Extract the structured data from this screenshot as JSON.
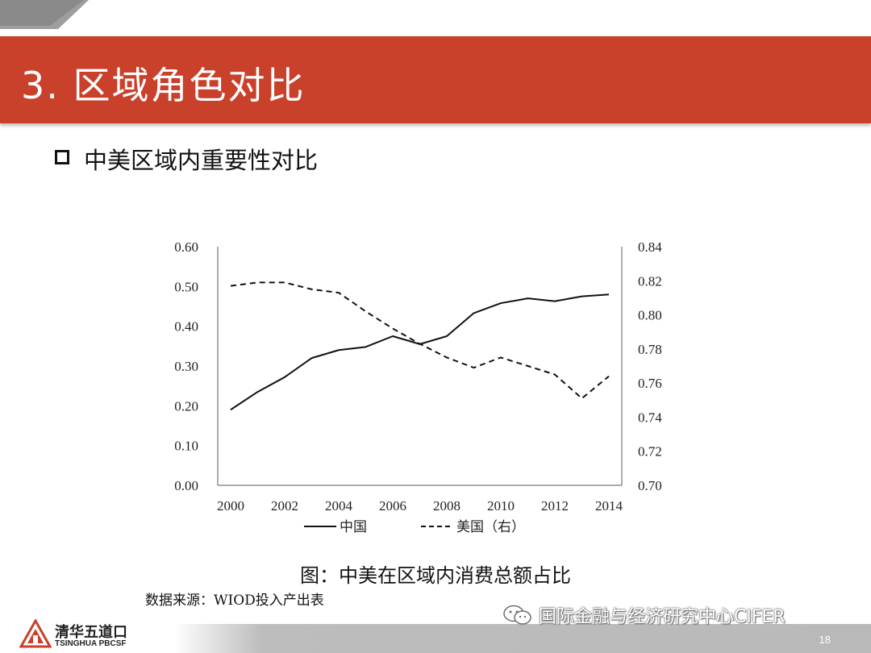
{
  "slide": {
    "title": "3.  区域角色对比",
    "subtitle": "中美区域内重要性对比",
    "caption": "图：中美在区域内消费总额占比",
    "source": "数据来源：WIOD投入产出表",
    "watermark": "国际金融与经济研究中心CIFER",
    "logo_cn": "清华五道口",
    "logo_en": "TSINGHUA PBCSF",
    "page_number": "18",
    "accent_color": "#c9402b"
  },
  "chart_data": {
    "type": "line",
    "x": [
      2000,
      2001,
      2002,
      2003,
      2004,
      2005,
      2006,
      2007,
      2008,
      2009,
      2010,
      2011,
      2012,
      2013,
      2014
    ],
    "x_ticks": [
      "2000",
      "2002",
      "2004",
      "2006",
      "2008",
      "2010",
      "2012",
      "2014"
    ],
    "y_left_ticks": [
      "0.00",
      "0.10",
      "0.20",
      "0.30",
      "0.40",
      "0.50",
      "0.60"
    ],
    "y_right_ticks": [
      "0.70",
      "0.72",
      "0.74",
      "0.76",
      "0.78",
      "0.80",
      "0.82",
      "0.84"
    ],
    "ylim_left": [
      0,
      0.6
    ],
    "ylim_right": [
      0.7,
      0.84
    ],
    "grid": false,
    "legend_position": "bottom",
    "series": [
      {
        "name": "中国",
        "axis": "left",
        "style": "solid",
        "values": [
          0.19,
          0.235,
          0.272,
          0.32,
          0.34,
          0.348,
          0.375,
          0.355,
          0.375,
          0.433,
          0.458,
          0.47,
          0.463,
          0.475,
          0.48
        ]
      },
      {
        "name": "美国（右）",
        "axis": "right",
        "style": "dashed",
        "values": [
          0.817,
          0.819,
          0.819,
          0.815,
          0.813,
          0.802,
          0.792,
          0.783,
          0.775,
          0.769,
          0.775,
          0.77,
          0.765,
          0.751,
          0.764
        ]
      }
    ]
  }
}
